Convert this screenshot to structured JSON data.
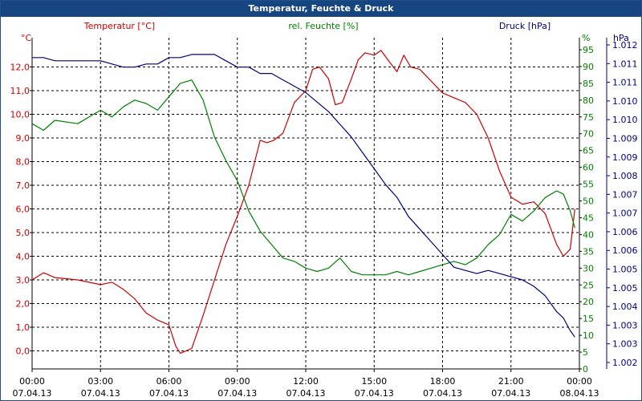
{
  "window": {
    "title": "Temperatur, Feuchte & Druck"
  },
  "chart_data": {
    "type": "line",
    "title": "Temperatur, Feuchte & Druck",
    "x_ticks": [
      {
        "time": "00:00",
        "date": "07.04.13"
      },
      {
        "time": "03:00",
        "date": "07.04.13"
      },
      {
        "time": "06:00",
        "date": "07.04.13"
      },
      {
        "time": "09:00",
        "date": "07.04.13"
      },
      {
        "time": "12:00",
        "date": "07.04.13"
      },
      {
        "time": "15:00",
        "date": "07.04.13"
      },
      {
        "time": "18:00",
        "date": "07.04.13"
      },
      {
        "time": "21:00",
        "date": "07.04.13"
      },
      {
        "time": "00:00",
        "date": "08.04.13"
      }
    ],
    "xlim_hours": [
      0,
      24
    ],
    "grid": true,
    "axes": {
      "temperature": {
        "label": "Temperatur [°C]",
        "unit": "°C",
        "color": "#cc0000",
        "ticks": [
          "0,0",
          "1,0",
          "2,0",
          "3,0",
          "4,0",
          "5,0",
          "6,0",
          "7,0",
          "8,0",
          "9,0",
          "10,0",
          "11,0",
          "12,0"
        ]
      },
      "humidity": {
        "label": "rel. Feuchte [%]",
        "unit": "%",
        "color": "#008000",
        "ticks": [
          "0",
          "5",
          "10",
          "15",
          "20",
          "25",
          "30",
          "35",
          "40",
          "45",
          "50",
          "55",
          "60",
          "65",
          "70",
          "75",
          "80",
          "85",
          "90",
          "95"
        ]
      },
      "pressure": {
        "label": "Druck [hPa]",
        "unit": "hPa",
        "color": "#000080",
        "ticks": [
          "1.002",
          "1.003",
          "1.003",
          "1.004",
          "1.005",
          "1.005",
          "1.006",
          "1.006",
          "1.007",
          "1.007",
          "1.008",
          "1.009",
          "1.009",
          "1.010",
          "1.010",
          "1.011",
          "1.011",
          "1.012"
        ]
      }
    },
    "series": [
      {
        "name": "Temperatur [°C]",
        "axis": "temperature",
        "color": "#cc0000",
        "x": [
          0,
          0.5,
          1,
          2,
          3,
          3.5,
          4,
          4.5,
          5,
          5.5,
          6,
          6.3,
          6.5,
          7,
          7.5,
          8,
          8.5,
          9,
          9.5,
          10,
          10.3,
          10.6,
          11,
          11.5,
          12,
          12.3,
          12.6,
          13,
          13.3,
          13.6,
          14,
          14.3,
          14.6,
          15,
          15.3,
          15.6,
          16,
          16.3,
          16.6,
          17,
          18,
          18.5,
          19,
          19.5,
          20,
          20.5,
          21,
          21.5,
          22,
          22.5,
          23,
          23.3,
          23.6,
          23.8
        ],
        "y": [
          3.0,
          3.3,
          3.1,
          3.0,
          2.8,
          2.9,
          2.6,
          2.2,
          1.6,
          1.3,
          1.1,
          0.2,
          -0.1,
          0.1,
          1.5,
          3.0,
          4.5,
          5.7,
          7.0,
          8.9,
          8.8,
          8.9,
          9.2,
          10.5,
          11.0,
          11.9,
          12.0,
          11.5,
          10.4,
          10.5,
          11.5,
          12.3,
          12.6,
          12.5,
          12.7,
          12.3,
          11.8,
          12.5,
          12.0,
          11.9,
          10.9,
          10.7,
          10.5,
          10.0,
          9.0,
          7.6,
          6.5,
          6.2,
          6.3,
          5.8,
          4.5,
          4.0,
          4.3,
          6.0
        ]
      },
      {
        "name": "rel. Feuchte [%]",
        "axis": "humidity",
        "color": "#008000",
        "x": [
          0,
          0.5,
          1,
          2,
          3,
          3.5,
          4,
          4.5,
          5,
          5.5,
          6,
          6.5,
          7,
          7.5,
          8,
          8.5,
          9,
          9.5,
          10,
          10.5,
          11,
          11.5,
          12,
          12.5,
          13,
          13.5,
          14,
          14.5,
          15,
          15.5,
          16,
          16.5,
          17,
          17.5,
          18,
          18.5,
          19,
          19.5,
          20,
          20.5,
          21,
          21.5,
          22,
          22.5,
          23,
          23.3,
          23.6,
          23.8
        ],
        "y": [
          73,
          71,
          74,
          73,
          77,
          75,
          78,
          80,
          79,
          77,
          81,
          85,
          86,
          80,
          69,
          62,
          56,
          47,
          41,
          37,
          33,
          32,
          30,
          29,
          30,
          33,
          29,
          28,
          28,
          28,
          29,
          28,
          29,
          30,
          31,
          32,
          31,
          33,
          37,
          40,
          46,
          44,
          47,
          51,
          53,
          52,
          47,
          42
        ]
      },
      {
        "name": "Druck [hPa]",
        "axis": "pressure",
        "color": "#000080",
        "x": [
          0,
          0.5,
          1,
          2,
          3,
          3.5,
          4,
          4.5,
          5,
          5.5,
          6,
          6.5,
          7,
          7.5,
          8,
          8.5,
          9,
          9.5,
          10,
          10.5,
          11,
          11.5,
          12,
          12.5,
          13,
          13.5,
          14,
          14.5,
          15,
          15.5,
          16,
          16.5,
          17,
          17.5,
          18,
          18.5,
          19,
          19.5,
          20,
          20.5,
          21,
          21.5,
          22,
          22.5,
          23,
          23.3,
          23.6,
          23.8
        ],
        "y": [
          1.0116,
          1.0116,
          1.0115,
          1.0115,
          1.0115,
          1.0114,
          1.0113,
          1.0113,
          1.0114,
          1.0114,
          1.0116,
          1.0116,
          1.0117,
          1.0117,
          1.0117,
          1.0115,
          1.0113,
          1.0113,
          1.0111,
          1.0111,
          1.0109,
          1.0107,
          1.0105,
          1.0102,
          1.0099,
          1.0095,
          1.0091,
          1.0086,
          1.0081,
          1.0076,
          1.0072,
          1.0066,
          1.0062,
          1.0058,
          1.0054,
          1.005,
          1.0049,
          1.0048,
          1.0049,
          1.0048,
          1.0047,
          1.0046,
          1.0044,
          1.0041,
          1.0036,
          1.0034,
          1.003,
          1.0028
        ]
      }
    ]
  }
}
